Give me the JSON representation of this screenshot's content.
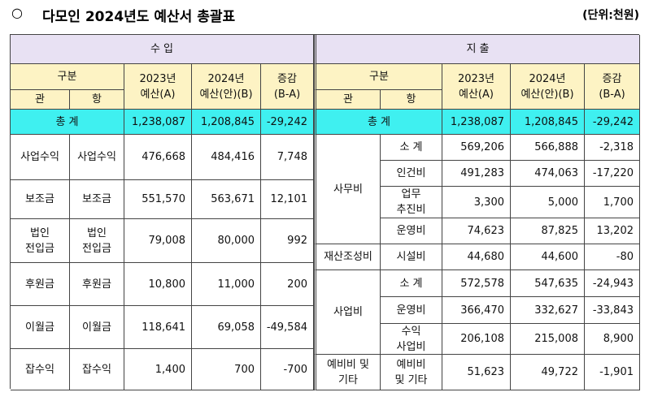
{
  "header": {
    "bullet": "○",
    "title": "다모인 2024년도 예산서 총괄표",
    "unit": "(단위:천원)"
  },
  "table": {
    "income": {
      "title": "수 입",
      "headers": [
        "구분",
        "관",
        "항",
        "2023년\n예산(A)",
        "2024년\n예산(안)(B)",
        "증감\n(B-A)"
      ],
      "total": [
        "총 계",
        "1,238,087",
        "1,208,845",
        "-29,242"
      ],
      "rows": [
        [
          "사업수익",
          "사업수익",
          "476,668",
          "484,416",
          "7,748"
        ],
        [
          "보조금",
          "보조금",
          "551,570",
          "563,671",
          "12,101"
        ],
        [
          "법인\n전입금",
          "법인\n전입금",
          "79,008",
          "80,000",
          "992"
        ],
        [
          "후원금",
          "후원금",
          "10,800",
          "11,000",
          "200"
        ],
        [
          "이월금",
          "이월금",
          "118,641",
          "69,058",
          "-49,584"
        ],
        [
          "잡수익",
          "잡수익",
          "1,400",
          "700",
          "-700"
        ]
      ]
    },
    "expense": {
      "title": "지 출",
      "headers": [
        "구분",
        "관",
        "항",
        "2023년\n예산(A)",
        "2024년\n예산(안)(B)",
        "증감\n(B-A)"
      ],
      "total": [
        "총 계",
        "1,238,087",
        "1,208,845",
        "-29,242"
      ],
      "groups": [
        {
          "name": "사무비",
          "items": [
            [
              "소 계",
              "569,206",
              "566,888",
              "-2,318"
            ],
            [
              "인건비",
              "491,283",
              "474,063",
              "-17,220"
            ],
            [
              "업무\n추진비",
              "3,300",
              "5,000",
              "1,700"
            ],
            [
              "운영비",
              "74,623",
              "87,825",
              "13,202"
            ]
          ]
        },
        {
          "name": "재산조성비",
          "items": [
            [
              "시설비",
              "44,680",
              "44,600",
              "-80"
            ]
          ]
        },
        {
          "name": "사업비",
          "items": [
            [
              "소 계",
              "572,578",
              "547,635",
              "-24,943"
            ],
            [
              "운영비",
              "366,470",
              "332,627",
              "-33,843"
            ],
            [
              "수익\n사업비",
              "206,108",
              "215,008",
              "8,900"
            ]
          ]
        },
        {
          "name": "예비비 및\n기타",
          "items": [
            [
              "예비비\n및 기타",
              "51,623",
              "49,722",
              "-1,901"
            ]
          ]
        }
      ]
    }
  }
}
